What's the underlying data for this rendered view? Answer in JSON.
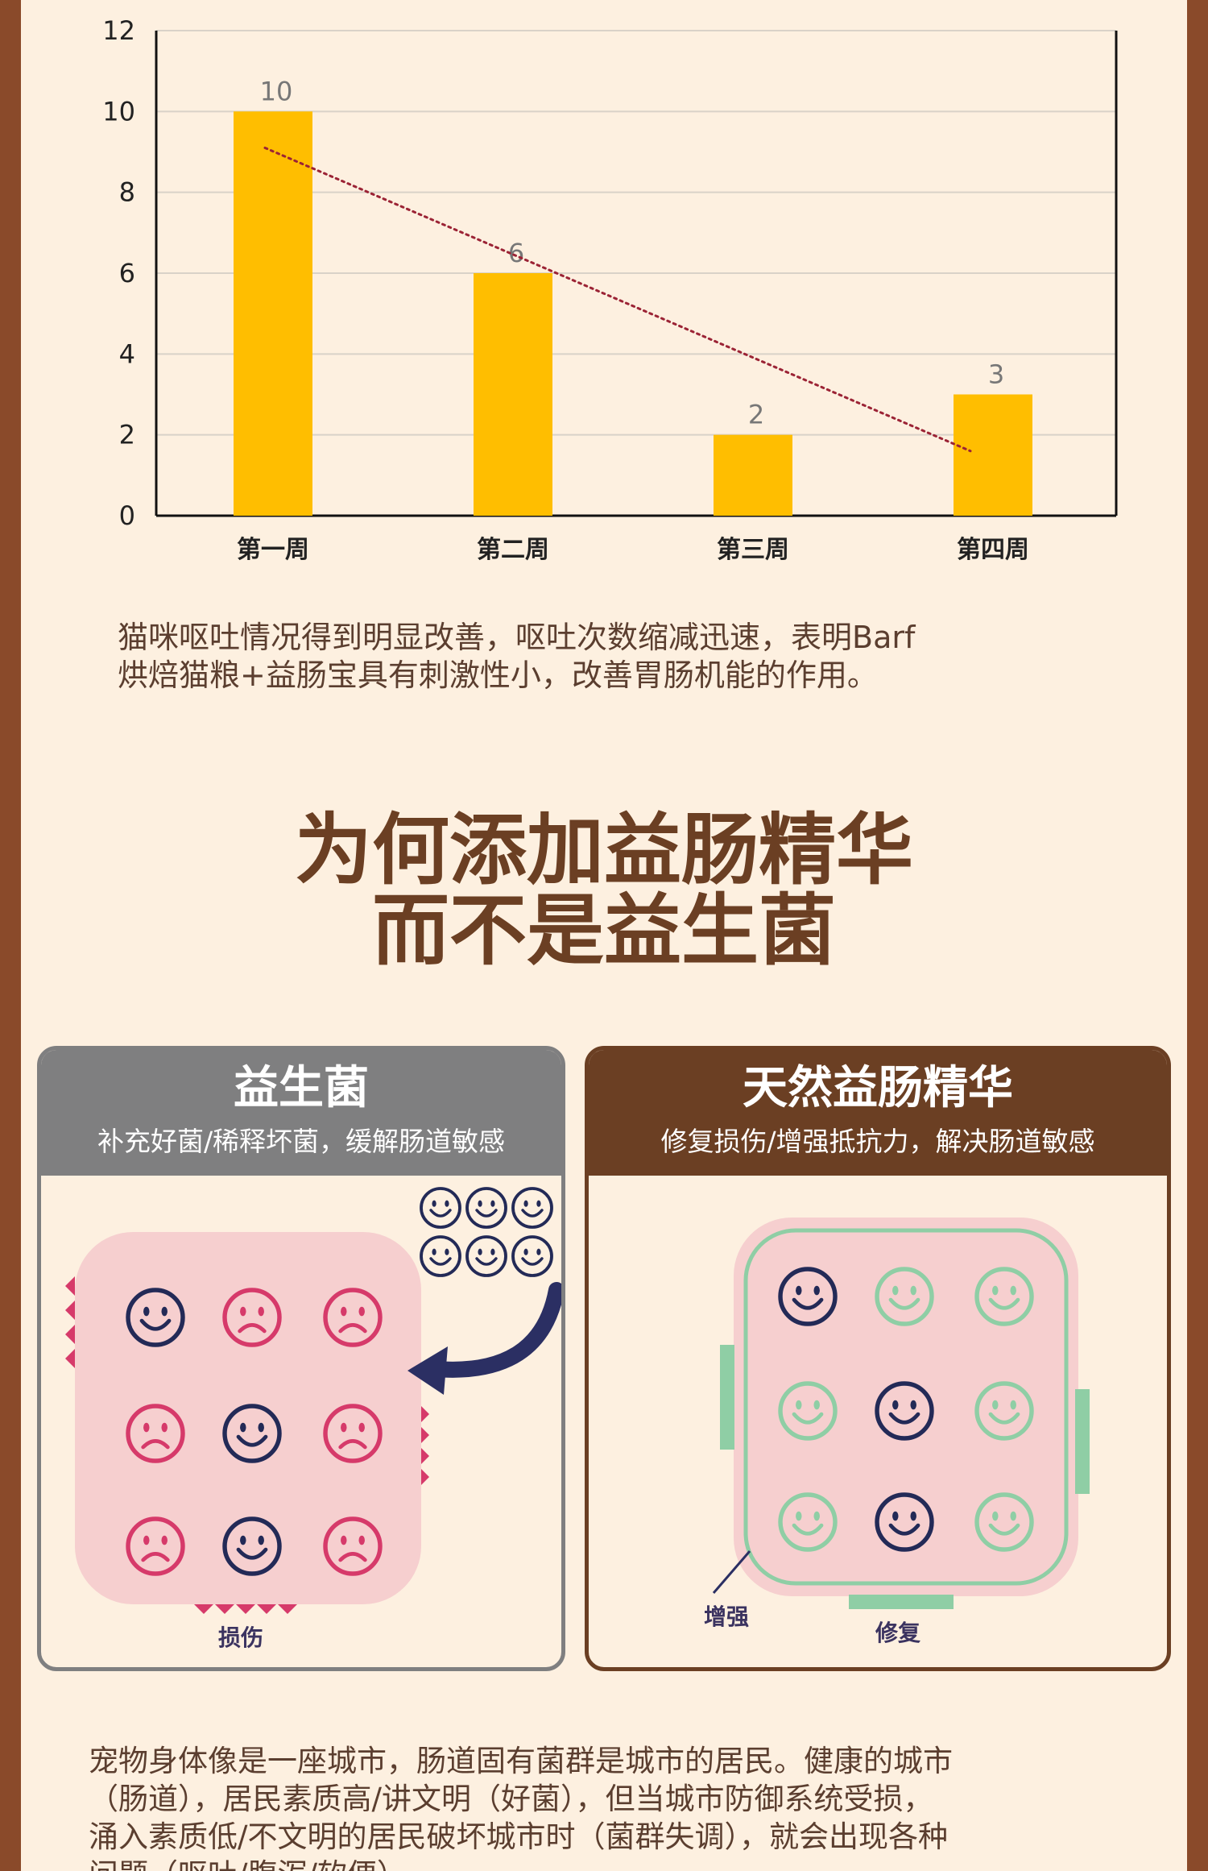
{
  "chart_data": {
    "type": "bar",
    "categories": [
      "第一周",
      "第二周",
      "第三周",
      "第四周"
    ],
    "values": [
      10,
      6,
      2,
      3
    ],
    "data_labels": [
      "10",
      "6",
      "2",
      "3"
    ],
    "ylim": [
      0,
      12
    ],
    "yticks": [
      "0",
      "2",
      "4",
      "6",
      "8",
      "10",
      "12"
    ],
    "bar_color": "#ffbe00",
    "trendline": {
      "style": "dotted",
      "color": "#9b2335",
      "from_value": 9.1,
      "to_value": 1.6
    },
    "grid": true
  },
  "caption": {
    "line1": "猫咪呕吐情况得到明显改善，呕吐次数缩减迅速，表明Barf",
    "line2": "烘焙猫粮+益肠宝具有刺激性小，改善胃肠机能的作用。"
  },
  "heading": {
    "line1": "为何添加益肠精华",
    "line2": "而不是益生菌"
  },
  "panels": {
    "left": {
      "title": "益生菌",
      "subtitle": "补充好菌/稀释坏菌，缓解肠道敏感",
      "damage_label": "损伤",
      "header_color": "#7f7f80"
    },
    "right": {
      "title": "天然益肠精华",
      "subtitle": "修复损伤/增强抵抗力，解决肠道敏感",
      "enhance_label": "增强",
      "repair_label": "修复",
      "header_color": "#6b3f23"
    }
  },
  "footer": {
    "line1": "宠物身体像是一座城市，肠道固有菌群是城市的居民。健康的城市",
    "line2": "（肠道），居民素质高/讲文明（好菌），但当城市防御系统受损，",
    "line3": "涌入素质低/不文明的居民破坏城市时（菌群失调），就会出现各种",
    "line4": "问题（呕吐/腹泻/软便）"
  }
}
